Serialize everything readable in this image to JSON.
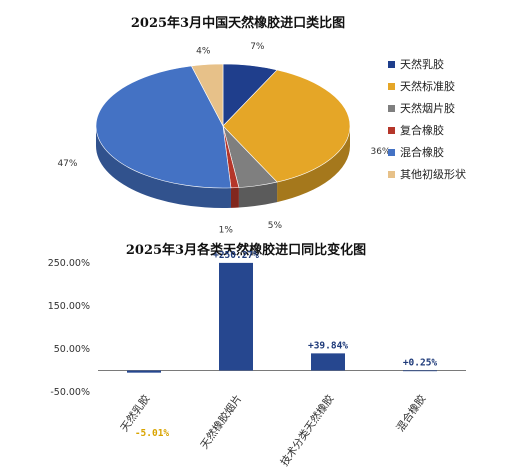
{
  "chart_data": [
    {
      "type": "pie",
      "title": "2025年3月中国天然橡胶进口类比图",
      "categories": [
        "天然乳胶",
        "天然标准胶",
        "天然烟片胶",
        "复合橡胶",
        "混合橡胶",
        "其他初级形状"
      ],
      "values": [
        7,
        36,
        5,
        1,
        47,
        4
      ],
      "labels": [
        "7%",
        "36%",
        "5%",
        "1%",
        "47%",
        "4%"
      ],
      "colors": [
        "#1f3e8c",
        "#e5a627",
        "#7f7f7f",
        "#b5362a",
        "#4472c4",
        "#e7c189"
      ],
      "legend": "right"
    },
    {
      "type": "bar",
      "title": "2025年3月各类天然橡胶进口同比变化图",
      "categories": [
        "天然乳胶",
        "天然橡胶烟片",
        "技术分类天然橡胶",
        "混合橡胶"
      ],
      "values": [
        -5.01,
        250.27,
        39.84,
        0.25
      ],
      "labels": [
        "-5.01%",
        "+250.27%",
        "+39.84%",
        "+0.25%"
      ],
      "yticks": [
        "250.00%",
        "150.00%",
        "50.00%",
        "-50.00%"
      ],
      "ylim": [
        -50,
        250
      ],
      "color": "#26478f"
    }
  ]
}
